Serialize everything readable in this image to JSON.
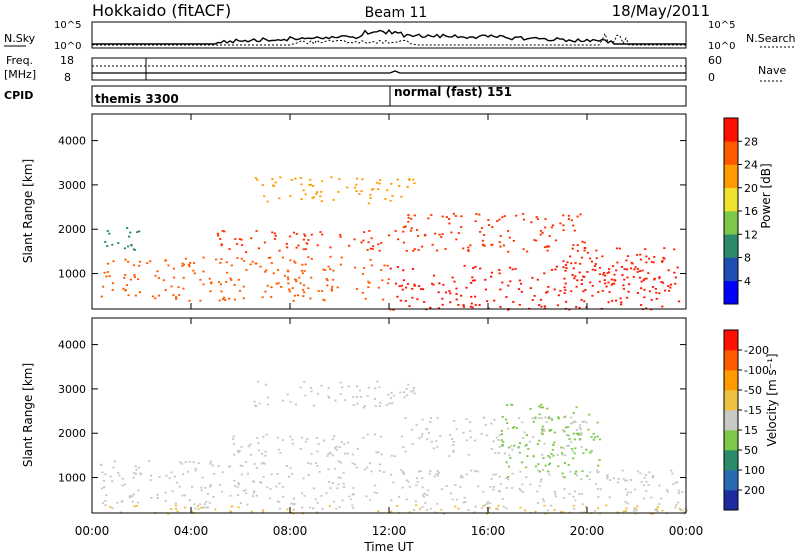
{
  "header": {
    "title_left": "Hokkaido (fitACF)",
    "title_center": "Beam 11",
    "title_right": "18/May/2011"
  },
  "summary_panels": {
    "nsky": {
      "label": "N.Sky",
      "right_label": "N.Search",
      "ticks": [
        {
          "value": "10^5",
          "label": "10^5"
        },
        {
          "value": "10^0",
          "label": "10^0"
        }
      ]
    },
    "freq": {
      "label_line1": "Freq.",
      "label_line2": "[MHz]",
      "ticks": [
        "18",
        "8"
      ],
      "right_label": "Nave",
      "right_ticks": [
        "60",
        "0"
      ]
    },
    "cpid": {
      "label": "CPID",
      "segments": [
        {
          "start_hour": 0.0,
          "label": "themis 3300"
        },
        {
          "start_hour": 12.0,
          "label": "normal (fast) 151"
        }
      ]
    }
  },
  "chart_data": [
    {
      "type": "heatmap",
      "name": "power-panel",
      "xlabel": "",
      "ylabel": "Slant Range [km]",
      "xlim_hours": [
        0,
        24
      ],
      "ylim": [
        200,
        4600
      ],
      "yticks": [
        1000,
        2000,
        3000,
        4000
      ],
      "colorbar": {
        "title": "Power [dB]",
        "tick_labels": [
          "4",
          "8",
          "12",
          "16",
          "20",
          "24",
          "28"
        ],
        "colors": [
          "#0000ff",
          "#1e4fb4",
          "#2a8a6a",
          "#7cc84a",
          "#f0e030",
          "#ff9a00",
          "#ff5a00",
          "#ff1000"
        ]
      },
      "scatter_bands": [
        {
          "t0": 0.3,
          "t1": 2.0,
          "r0": 1450,
          "r1": 2050,
          "color": "#2a8a6a"
        },
        {
          "t0": 0.3,
          "t1": 12.0,
          "r0": 400,
          "r1": 1400,
          "color": "#ff5a00"
        },
        {
          "t0": 5.0,
          "t1": 12.5,
          "r0": 1500,
          "r1": 2000,
          "color": "#ff3000"
        },
        {
          "t0": 6.5,
          "t1": 13.0,
          "r0": 2600,
          "r1": 3200,
          "color": "#ff9a00"
        },
        {
          "t0": 12.0,
          "t1": 24.0,
          "r0": 200,
          "r1": 1200,
          "color": "#ff1000"
        },
        {
          "t0": 12.5,
          "t1": 20.0,
          "r0": 1500,
          "r1": 2400,
          "color": "#ff3000"
        },
        {
          "t0": 19.0,
          "t1": 23.5,
          "r0": 500,
          "r1": 1600,
          "color": "#ff2000"
        }
      ]
    },
    {
      "type": "heatmap",
      "name": "velocity-panel",
      "xlabel": "Time UT",
      "ylabel": "Slant Range [km]",
      "xlim_hours": [
        0,
        24
      ],
      "ylim": [
        200,
        4600
      ],
      "yticks": [
        1000,
        2000,
        3000,
        4000
      ],
      "xticks": [
        "00:00",
        "04:00",
        "08:00",
        "12:00",
        "16:00",
        "20:00",
        "00:00"
      ],
      "colorbar": {
        "title": "Velocity [m s⁻¹]",
        "tick_labels": [
          "200",
          "100",
          "50",
          "15",
          "-15",
          "-50",
          "-100",
          "-200"
        ],
        "colors": [
          "#1e2aa0",
          "#2a6ab4",
          "#2a8a6a",
          "#7cc84a",
          "#c8c8c4",
          "#f0c040",
          "#ff9a00",
          "#ff5a00",
          "#ff1000"
        ]
      },
      "scatter_bands": [
        {
          "t0": 0.3,
          "t1": 12.0,
          "r0": 300,
          "r1": 1400,
          "color": "#c8c8c4"
        },
        {
          "t0": 5.0,
          "t1": 12.5,
          "r0": 1500,
          "r1": 2000,
          "color": "#c8c8c4"
        },
        {
          "t0": 6.5,
          "t1": 13.0,
          "r0": 2600,
          "r1": 3200,
          "color": "#c8c8c4"
        },
        {
          "t0": 12.0,
          "t1": 24.0,
          "r0": 200,
          "r1": 1200,
          "color": "#c8c8c4"
        },
        {
          "t0": 12.5,
          "t1": 20.0,
          "r0": 1500,
          "r1": 2400,
          "color": "#c8c8c4"
        },
        {
          "t0": 16.5,
          "t1": 20.5,
          "r0": 1000,
          "r1": 2700,
          "color": "#7cc84a"
        },
        {
          "t0": 0.3,
          "t1": 24.0,
          "r0": 200,
          "r1": 400,
          "color": "#f0c040"
        }
      ]
    }
  ]
}
